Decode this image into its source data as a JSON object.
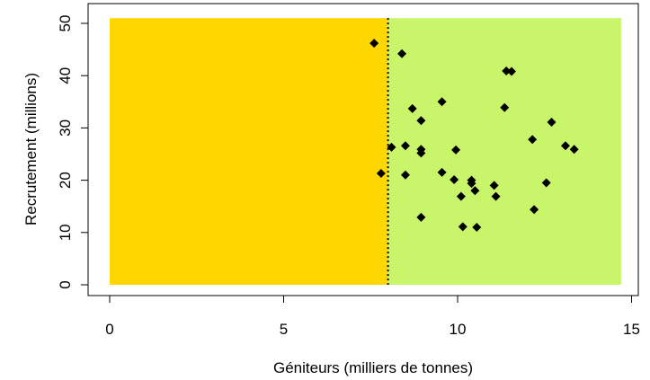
{
  "chart_data": {
    "type": "scatter",
    "title": "",
    "xlabel": "Géniteurs (milliers de tonnes)",
    "ylabel": "Recrutement (millions)",
    "xlim": [
      0,
      15
    ],
    "ylim": [
      0,
      51
    ],
    "x_ticks": [
      "0",
      "5",
      "10",
      "15"
    ],
    "y_ticks": [
      "0",
      "10",
      "20",
      "30",
      "40",
      "50"
    ],
    "grid": false,
    "marker": "diamond",
    "marker_color": "#000000",
    "threshold_x": 8.0,
    "threshold_line_style": "dotted",
    "regions": [
      {
        "x_from": 0,
        "x_to": 8.0,
        "y_from": 0,
        "y_to": 51,
        "color": "#FFD700"
      },
      {
        "x_from": 8.0,
        "x_to": 14.7,
        "y_from": 0,
        "y_to": 51,
        "color": "#C8F56A"
      }
    ],
    "points": [
      {
        "x": 7.6,
        "y": 46.2
      },
      {
        "x": 8.4,
        "y": 44.2
      },
      {
        "x": 7.8,
        "y": 21.3
      },
      {
        "x": 8.1,
        "y": 26.3
      },
      {
        "x": 8.5,
        "y": 26.6
      },
      {
        "x": 8.5,
        "y": 21.0
      },
      {
        "x": 8.7,
        "y": 33.7
      },
      {
        "x": 8.95,
        "y": 31.4
      },
      {
        "x": 8.95,
        "y": 25.9
      },
      {
        "x": 8.95,
        "y": 25.2
      },
      {
        "x": 8.95,
        "y": 12.9
      },
      {
        "x": 9.55,
        "y": 35.0
      },
      {
        "x": 9.55,
        "y": 21.5
      },
      {
        "x": 9.9,
        "y": 20.1
      },
      {
        "x": 9.95,
        "y": 25.8
      },
      {
        "x": 10.1,
        "y": 16.9
      },
      {
        "x": 10.15,
        "y": 11.1
      },
      {
        "x": 10.4,
        "y": 20.0
      },
      {
        "x": 10.4,
        "y": 19.4
      },
      {
        "x": 10.5,
        "y": 18.0
      },
      {
        "x": 10.55,
        "y": 11.0
      },
      {
        "x": 11.05,
        "y": 19.0
      },
      {
        "x": 11.1,
        "y": 16.9
      },
      {
        "x": 11.35,
        "y": 33.9
      },
      {
        "x": 11.4,
        "y": 40.9
      },
      {
        "x": 11.55,
        "y": 40.8
      },
      {
        "x": 12.15,
        "y": 27.8
      },
      {
        "x": 12.2,
        "y": 14.4
      },
      {
        "x": 12.55,
        "y": 19.5
      },
      {
        "x": 12.7,
        "y": 31.1
      },
      {
        "x": 13.1,
        "y": 26.6
      },
      {
        "x": 13.35,
        "y": 25.9
      }
    ]
  }
}
